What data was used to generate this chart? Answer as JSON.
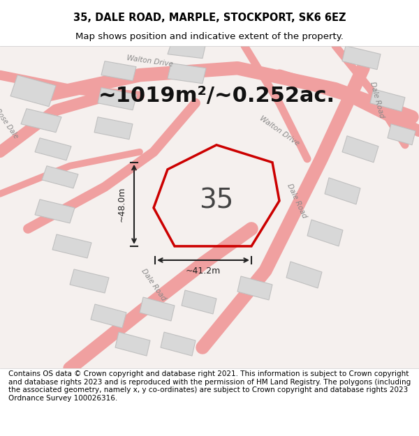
{
  "title": "35, DALE ROAD, MARPLE, STOCKPORT, SK6 6EZ",
  "subtitle": "Map shows position and indicative extent of the property.",
  "area_text": "~1019m²/~0.252ac.",
  "property_number": "35",
  "dim_vertical": "~48.0m",
  "dim_horizontal": "~41.2m",
  "footer": "Contains OS data © Crown copyright and database right 2021. This information is subject to Crown copyright and database rights 2023 and is reproduced with the permission of HM Land Registry. The polygons (including the associated geometry, namely x, y co-ordinates) are subject to Crown copyright and database rights 2023 Ordnance Survey 100026316.",
  "bg_color": "#f5f0ee",
  "map_bg": "#ffffff",
  "road_color": "#f0a0a0",
  "building_color": "#d8d8d8",
  "building_edge": "#c0c0c0",
  "property_outline_color": "#cc0000",
  "title_fontsize": 10.5,
  "subtitle_fontsize": 9.5,
  "area_fontsize": 22,
  "number_fontsize": 28,
  "dim_fontsize": 9,
  "footer_fontsize": 7.5
}
